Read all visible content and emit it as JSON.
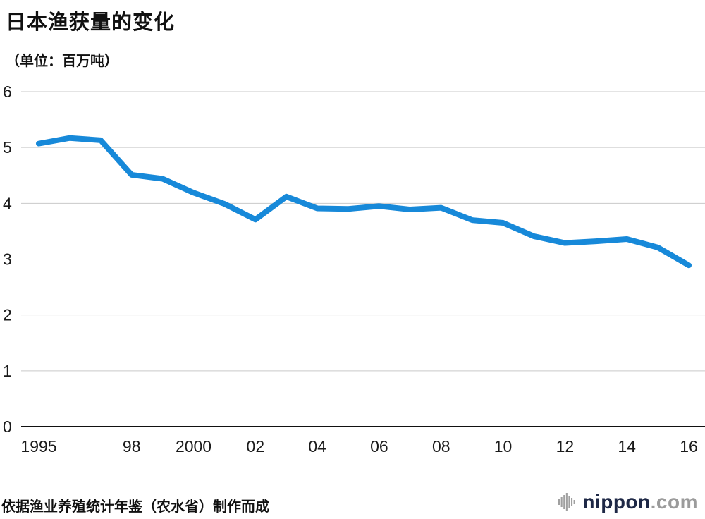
{
  "title": "日本渔获量的变化",
  "subtitle": "（单位：百万吨）",
  "source": "依据渔业养殖统计年鉴（农水省）制作而成",
  "logo": {
    "name": "nippon",
    "suffix": ".com",
    "icon": "audio-bars-icon"
  },
  "colors": {
    "line": "#1789d9",
    "grid": "#c9c9c9",
    "axis": "#111111",
    "text": "#1a1a1a",
    "logo_main": "#1e2846",
    "logo_suffix": "#9b9b9b",
    "logo_icon": "#a0a0a0"
  },
  "chart_data": {
    "type": "line",
    "title": "日本渔获量的变化",
    "unit": "百万吨",
    "x": [
      1995,
      1996,
      1997,
      1998,
      1999,
      2000,
      2001,
      2002,
      2003,
      2004,
      2005,
      2006,
      2007,
      2008,
      2009,
      2010,
      2011,
      2012,
      2013,
      2014,
      2015,
      2016
    ],
    "values": [
      5.07,
      5.17,
      5.13,
      4.51,
      4.44,
      4.19,
      3.99,
      3.71,
      4.12,
      3.91,
      3.9,
      3.95,
      3.89,
      3.92,
      3.7,
      3.65,
      3.41,
      3.29,
      3.32,
      3.36,
      3.21,
      2.89
    ],
    "ylim": [
      0,
      6
    ],
    "y_ticks": [
      0,
      1,
      2,
      3,
      4,
      5,
      6
    ],
    "x_tick_labels": [
      {
        "year": 1995,
        "label": "1995"
      },
      {
        "year": 1998,
        "label": "98"
      },
      {
        "year": 2000,
        "label": "2000"
      },
      {
        "year": 2002,
        "label": "02"
      },
      {
        "year": 2004,
        "label": "04"
      },
      {
        "year": 2006,
        "label": "06"
      },
      {
        "year": 2008,
        "label": "08"
      },
      {
        "year": 2010,
        "label": "10"
      },
      {
        "year": 2012,
        "label": "12"
      },
      {
        "year": 2014,
        "label": "14"
      },
      {
        "year": 2016,
        "label": "16"
      }
    ],
    "grid": true,
    "legend": false
  }
}
